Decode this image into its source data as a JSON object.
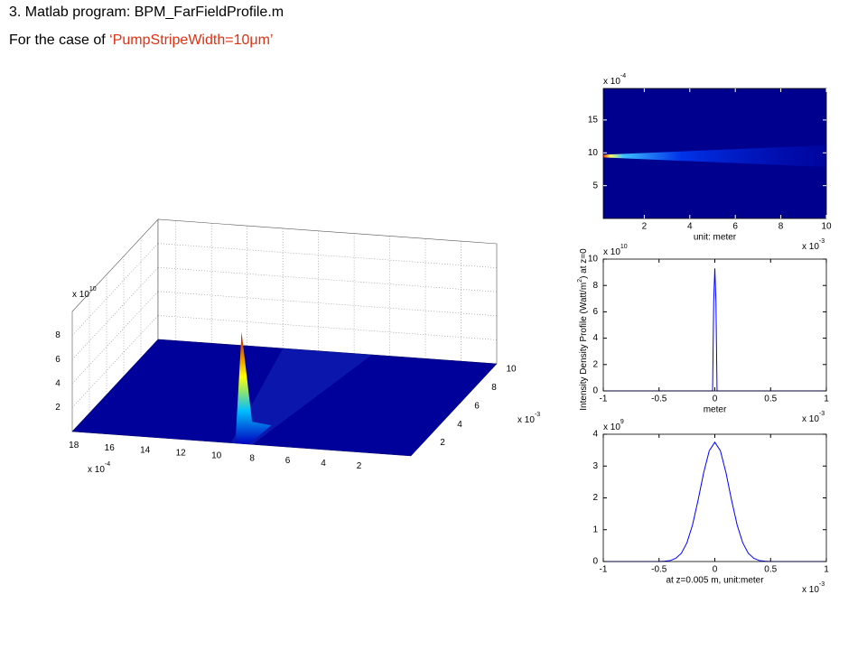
{
  "header": {
    "title": "3. Matlab program: BPM_FarFieldProfile.m",
    "subtitle": "For the case of ",
    "highlight": "‘PumpStripeWidth=10μm’"
  },
  "chart_data": [
    {
      "type": "surface3d",
      "colormap": "jet",
      "x_multiplier": {
        "base": "x 10",
        "power": "-4"
      },
      "y_multiplier": {
        "base": "x 10",
        "power": "-3"
      },
      "z_multiplier": {
        "base": "x 10",
        "power": "10"
      },
      "xlim": [
        0,
        19
      ],
      "xticks": [
        2,
        4,
        6,
        8,
        10,
        12,
        14,
        16,
        18
      ],
      "ylim": [
        0,
        10
      ],
      "yticks": [
        2,
        4,
        6,
        8,
        10
      ],
      "zlim": [
        0,
        10
      ],
      "zticks": [
        2,
        4,
        6,
        8
      ],
      "peak": {
        "x": 9.5,
        "y": 0,
        "z": 9.3
      },
      "grid": true
    },
    {
      "type": "heatmap",
      "colormap": "jet",
      "xlabel": "unit: meter",
      "x_multiplier": {
        "base": "x 10",
        "power": "-3"
      },
      "y_multiplier": {
        "base": "x 10",
        "power": "-4"
      },
      "xlim": [
        0.2,
        10
      ],
      "xticks": [
        2,
        4,
        6,
        8,
        10
      ],
      "ylim": [
        0,
        19.8
      ],
      "yticks": [
        5,
        10,
        15
      ],
      "beam_center": 9.5
    },
    {
      "type": "line",
      "xlabel": "meter",
      "ylabel": [
        "Intensity Density Profile (Watt/m",
        "2",
        ") at z=0"
      ],
      "x_multiplier": {
        "base": "x 10",
        "power": "-3"
      },
      "y_multiplier": {
        "base": "x 10",
        "power": "10"
      },
      "xlim": [
        -1,
        1
      ],
      "xticks": [
        -1,
        -0.5,
        0,
        0.5,
        1
      ],
      "ylim": [
        0,
        10
      ],
      "yticks": [
        0,
        2,
        4,
        6,
        8,
        10
      ],
      "color": "#0000ff",
      "x": [
        -1,
        -0.02,
        -0.01,
        0,
        0.01,
        0.02,
        1
      ],
      "values": [
        0,
        0,
        6.8,
        9.3,
        6.8,
        0,
        0
      ]
    },
    {
      "type": "line",
      "xlabel": "at z=0.005 m,  unit:meter",
      "x_multiplier": {
        "base": "x 10",
        "power": "-3"
      },
      "y_multiplier": {
        "base": "x 10",
        "power": "9"
      },
      "xlim": [
        -1,
        1
      ],
      "xticks": [
        -1,
        -0.5,
        0,
        0.5,
        1
      ],
      "ylim": [
        0,
        4
      ],
      "yticks": [
        0,
        1,
        2,
        3,
        4
      ],
      "color": "#0000ff",
      "x": [
        -1,
        -0.5,
        -0.45,
        -0.4,
        -0.35,
        -0.3,
        -0.25,
        -0.2,
        -0.15,
        -0.1,
        -0.05,
        0,
        0.05,
        0.1,
        0.15,
        0.2,
        0.25,
        0.3,
        0.35,
        0.4,
        0.45,
        0.5,
        1
      ],
      "values": [
        0,
        0,
        0.01,
        0.03,
        0.1,
        0.26,
        0.59,
        1.15,
        1.93,
        2.79,
        3.48,
        3.75,
        3.48,
        2.79,
        1.93,
        1.15,
        0.59,
        0.26,
        0.1,
        0.03,
        0.01,
        0,
        0
      ]
    }
  ]
}
